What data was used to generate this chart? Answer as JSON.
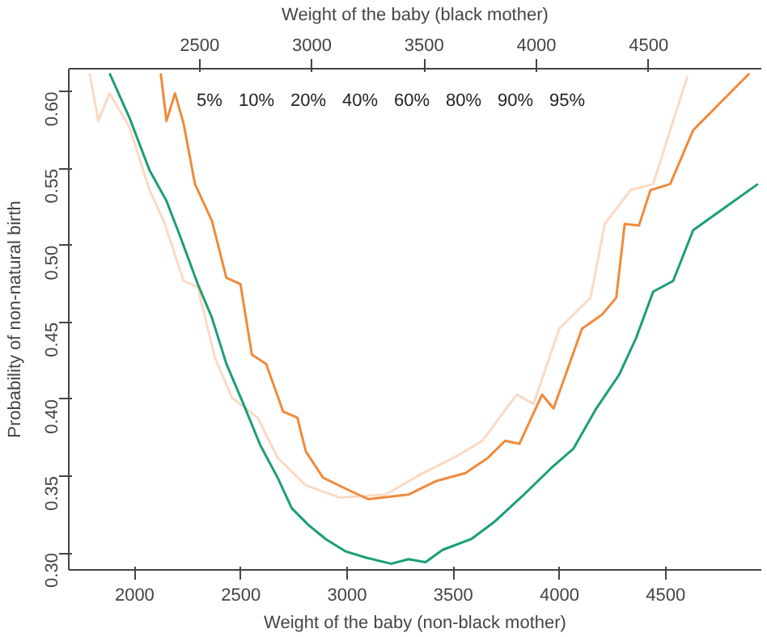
{
  "chart_data": {
    "type": "line",
    "xlabel": "Weight of the baby (non-black mother)",
    "x2label": "Weight of the baby (black mother)",
    "ylabel": "Probability of non-natural birth",
    "xlim": [
      1690,
      4950
    ],
    "xticks": [
      2000,
      2500,
      3000,
      3500,
      4000,
      4500
    ],
    "x2lim": [
      1917,
      5002
    ],
    "x2ticks": [
      2500,
      3000,
      3500,
      4000,
      4500
    ],
    "annotations": [
      "5%",
      "10%",
      "20%",
      "40%",
      "60%",
      "80%",
      "90%",
      "95%"
    ],
    "ylim": [
      0.289,
      0.615
    ],
    "yticks": [
      {
        "value": 0.3,
        "label": "0.30"
      },
      {
        "value": 0.35,
        "label": "0.35"
      },
      {
        "value": 0.4,
        "label": "0.40"
      },
      {
        "value": 0.45,
        "label": "0.45"
      },
      {
        "value": 0.5,
        "label": "0.50"
      },
      {
        "value": 0.55,
        "label": "0.55"
      },
      {
        "value": 0.6,
        "label": "0.60"
      }
    ],
    "grid": false,
    "line_style": "solid",
    "marker": "none",
    "series": [
      {
        "color": "#fcd9c4",
        "x": [
          1788,
          1829,
          1882,
          1976,
          2070,
          2137,
          2231,
          2297,
          2378,
          2458,
          2579,
          2673,
          2806,
          2967,
          3182,
          3343,
          3503,
          3637,
          3798,
          3878,
          3999,
          4146,
          4213,
          4334,
          4441,
          4521,
          4602
        ],
        "values": [
          0.612,
          0.581,
          0.599,
          0.577,
          0.536,
          0.516,
          0.477,
          0.473,
          0.427,
          0.401,
          0.388,
          0.362,
          0.344,
          0.336,
          0.338,
          0.351,
          0.362,
          0.373,
          0.403,
          0.397,
          0.446,
          0.466,
          0.514,
          0.536,
          0.54,
          0.575,
          0.61
        ]
      },
      {
        "color": "#1b9e77",
        "x": [
          1882,
          1976,
          2070,
          2150,
          2217,
          2297,
          2364,
          2432,
          2512,
          2592,
          2673,
          2740,
          2820,
          2900,
          2994,
          3088,
          3208,
          3289,
          3369,
          3449,
          3584,
          3691,
          3825,
          3959,
          4066,
          4173,
          4281,
          4361,
          4441,
          4535,
          4629,
          4934
        ],
        "values": [
          0.612,
          0.583,
          0.549,
          0.529,
          0.505,
          0.475,
          0.453,
          0.423,
          0.397,
          0.37,
          0.349,
          0.329,
          0.318,
          0.309,
          0.301,
          0.297,
          0.293,
          0.296,
          0.294,
          0.302,
          0.309,
          0.32,
          0.337,
          0.355,
          0.368,
          0.394,
          0.416,
          0.44,
          0.47,
          0.477,
          0.51,
          0.54
        ]
      },
      {
        "color": "#f08a3c",
        "x": [
          2123,
          2150,
          2190,
          2231,
          2284,
          2364,
          2432,
          2498,
          2552,
          2619,
          2699,
          2766,
          2806,
          2887,
          3021,
          3101,
          3289,
          3423,
          3557,
          3664,
          3744,
          3811,
          3918,
          3972,
          4106,
          4200,
          4267,
          4307,
          4374,
          4428,
          4521,
          4629,
          4894
        ],
        "values": [
          0.612,
          0.581,
          0.599,
          0.579,
          0.54,
          0.516,
          0.479,
          0.475,
          0.429,
          0.423,
          0.392,
          0.388,
          0.366,
          0.349,
          0.34,
          0.335,
          0.338,
          0.347,
          0.352,
          0.362,
          0.373,
          0.371,
          0.403,
          0.394,
          0.446,
          0.455,
          0.466,
          0.514,
          0.513,
          0.536,
          0.54,
          0.575,
          0.612
        ]
      }
    ]
  }
}
